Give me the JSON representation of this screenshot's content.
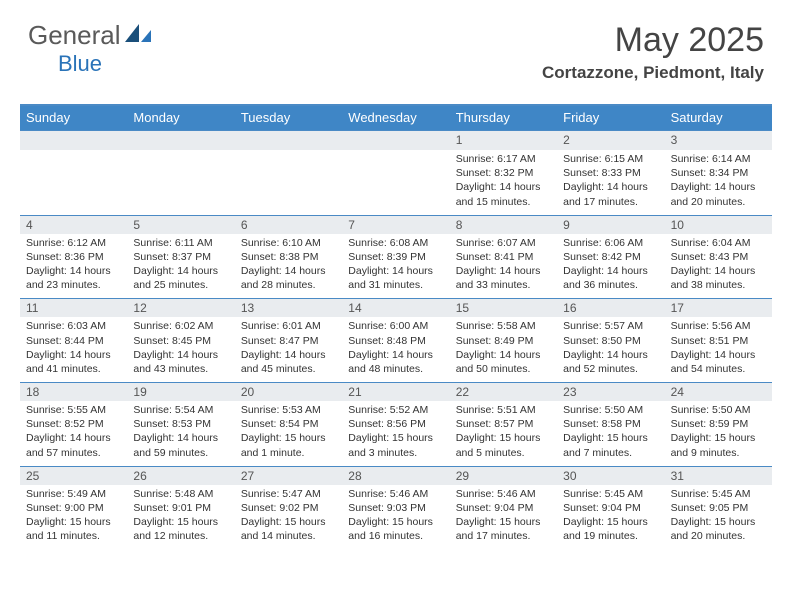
{
  "logo": {
    "text_gray": "General",
    "text_blue": "Blue",
    "triangle_dark": "#1a4f7a",
    "triangle_light": "#2a73b8"
  },
  "header": {
    "month_title": "May 2025",
    "location": "Cortazzone, Piedmont, Italy"
  },
  "colors": {
    "header_bg": "#3f86c6",
    "header_border": "#4a8ac5",
    "daynum_bg": "#e9ecef",
    "text": "#333333"
  },
  "day_headers": [
    "Sunday",
    "Monday",
    "Tuesday",
    "Wednesday",
    "Thursday",
    "Friday",
    "Saturday"
  ],
  "leading_blanks": 4,
  "days": [
    {
      "n": 1,
      "sunrise": "6:17 AM",
      "sunset": "8:32 PM",
      "daylight": "14 hours and 15 minutes."
    },
    {
      "n": 2,
      "sunrise": "6:15 AM",
      "sunset": "8:33 PM",
      "daylight": "14 hours and 17 minutes."
    },
    {
      "n": 3,
      "sunrise": "6:14 AM",
      "sunset": "8:34 PM",
      "daylight": "14 hours and 20 minutes."
    },
    {
      "n": 4,
      "sunrise": "6:12 AM",
      "sunset": "8:36 PM",
      "daylight": "14 hours and 23 minutes."
    },
    {
      "n": 5,
      "sunrise": "6:11 AM",
      "sunset": "8:37 PM",
      "daylight": "14 hours and 25 minutes."
    },
    {
      "n": 6,
      "sunrise": "6:10 AM",
      "sunset": "8:38 PM",
      "daylight": "14 hours and 28 minutes."
    },
    {
      "n": 7,
      "sunrise": "6:08 AM",
      "sunset": "8:39 PM",
      "daylight": "14 hours and 31 minutes."
    },
    {
      "n": 8,
      "sunrise": "6:07 AM",
      "sunset": "8:41 PM",
      "daylight": "14 hours and 33 minutes."
    },
    {
      "n": 9,
      "sunrise": "6:06 AM",
      "sunset": "8:42 PM",
      "daylight": "14 hours and 36 minutes."
    },
    {
      "n": 10,
      "sunrise": "6:04 AM",
      "sunset": "8:43 PM",
      "daylight": "14 hours and 38 minutes."
    },
    {
      "n": 11,
      "sunrise": "6:03 AM",
      "sunset": "8:44 PM",
      "daylight": "14 hours and 41 minutes."
    },
    {
      "n": 12,
      "sunrise": "6:02 AM",
      "sunset": "8:45 PM",
      "daylight": "14 hours and 43 minutes."
    },
    {
      "n": 13,
      "sunrise": "6:01 AM",
      "sunset": "8:47 PM",
      "daylight": "14 hours and 45 minutes."
    },
    {
      "n": 14,
      "sunrise": "6:00 AM",
      "sunset": "8:48 PM",
      "daylight": "14 hours and 48 minutes."
    },
    {
      "n": 15,
      "sunrise": "5:58 AM",
      "sunset": "8:49 PM",
      "daylight": "14 hours and 50 minutes."
    },
    {
      "n": 16,
      "sunrise": "5:57 AM",
      "sunset": "8:50 PM",
      "daylight": "14 hours and 52 minutes."
    },
    {
      "n": 17,
      "sunrise": "5:56 AM",
      "sunset": "8:51 PM",
      "daylight": "14 hours and 54 minutes."
    },
    {
      "n": 18,
      "sunrise": "5:55 AM",
      "sunset": "8:52 PM",
      "daylight": "14 hours and 57 minutes."
    },
    {
      "n": 19,
      "sunrise": "5:54 AM",
      "sunset": "8:53 PM",
      "daylight": "14 hours and 59 minutes."
    },
    {
      "n": 20,
      "sunrise": "5:53 AM",
      "sunset": "8:54 PM",
      "daylight": "15 hours and 1 minute."
    },
    {
      "n": 21,
      "sunrise": "5:52 AM",
      "sunset": "8:56 PM",
      "daylight": "15 hours and 3 minutes."
    },
    {
      "n": 22,
      "sunrise": "5:51 AM",
      "sunset": "8:57 PM",
      "daylight": "15 hours and 5 minutes."
    },
    {
      "n": 23,
      "sunrise": "5:50 AM",
      "sunset": "8:58 PM",
      "daylight": "15 hours and 7 minutes."
    },
    {
      "n": 24,
      "sunrise": "5:50 AM",
      "sunset": "8:59 PM",
      "daylight": "15 hours and 9 minutes."
    },
    {
      "n": 25,
      "sunrise": "5:49 AM",
      "sunset": "9:00 PM",
      "daylight": "15 hours and 11 minutes."
    },
    {
      "n": 26,
      "sunrise": "5:48 AM",
      "sunset": "9:01 PM",
      "daylight": "15 hours and 12 minutes."
    },
    {
      "n": 27,
      "sunrise": "5:47 AM",
      "sunset": "9:02 PM",
      "daylight": "15 hours and 14 minutes."
    },
    {
      "n": 28,
      "sunrise": "5:46 AM",
      "sunset": "9:03 PM",
      "daylight": "15 hours and 16 minutes."
    },
    {
      "n": 29,
      "sunrise": "5:46 AM",
      "sunset": "9:04 PM",
      "daylight": "15 hours and 17 minutes."
    },
    {
      "n": 30,
      "sunrise": "5:45 AM",
      "sunset": "9:04 PM",
      "daylight": "15 hours and 19 minutes."
    },
    {
      "n": 31,
      "sunrise": "5:45 AM",
      "sunset": "9:05 PM",
      "daylight": "15 hours and 20 minutes."
    }
  ],
  "labels": {
    "sunrise": "Sunrise:",
    "sunset": "Sunset:",
    "daylight": "Daylight:"
  }
}
